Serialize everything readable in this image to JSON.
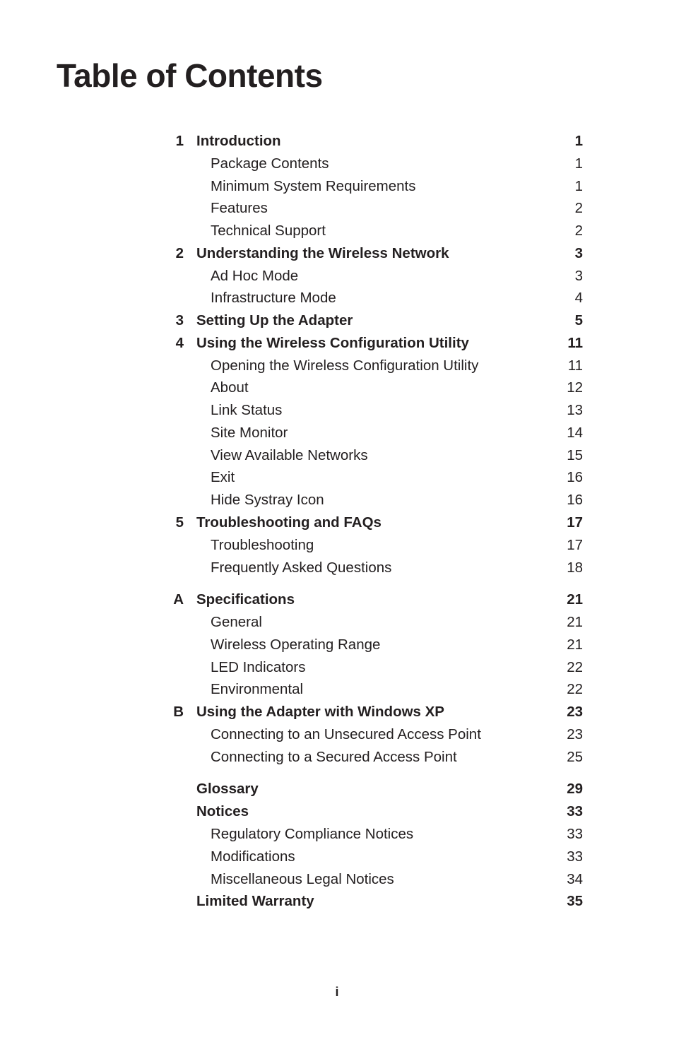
{
  "title": "Table of Contents",
  "pageNumber": "i",
  "entries": [
    {
      "num": "1",
      "label": "Introduction",
      "page": "1",
      "bold": true,
      "sub": false
    },
    {
      "num": "",
      "label": "Package Contents",
      "page": "1",
      "bold": false,
      "sub": true
    },
    {
      "num": "",
      "label": "Minimum System Requirements",
      "page": "1",
      "bold": false,
      "sub": true
    },
    {
      "num": "",
      "label": "Features",
      "page": "2",
      "bold": false,
      "sub": true
    },
    {
      "num": "",
      "label": "Technical Support",
      "page": "2",
      "bold": false,
      "sub": true
    },
    {
      "num": "2",
      "label": "Understanding the Wireless Network",
      "page": "3",
      "bold": true,
      "sub": false
    },
    {
      "num": "",
      "label": "Ad Hoc Mode",
      "page": "3",
      "bold": false,
      "sub": true
    },
    {
      "num": "",
      "label": "Infrastructure Mode",
      "page": "4",
      "bold": false,
      "sub": true
    },
    {
      "num": "3",
      "label": "Setting Up the Adapter",
      "page": "5",
      "bold": true,
      "sub": false
    },
    {
      "num": "4",
      "label": "Using the Wireless Configuration Utility",
      "page": "11",
      "bold": true,
      "sub": false
    },
    {
      "num": "",
      "label": "Opening the Wireless Configuration Utility",
      "page": "11",
      "bold": false,
      "sub": true
    },
    {
      "num": "",
      "label": "About",
      "page": "12",
      "bold": false,
      "sub": true
    },
    {
      "num": "",
      "label": "Link Status",
      "page": "13",
      "bold": false,
      "sub": true
    },
    {
      "num": "",
      "label": "Site Monitor",
      "page": "14",
      "bold": false,
      "sub": true
    },
    {
      "num": "",
      "label": "View Available Networks",
      "page": "15",
      "bold": false,
      "sub": true
    },
    {
      "num": "",
      "label": "Exit",
      "page": "16",
      "bold": false,
      "sub": true
    },
    {
      "num": "",
      "label": "Hide Systray Icon",
      "page": "16",
      "bold": false,
      "sub": true
    },
    {
      "num": "5",
      "label": "Troubleshooting and FAQs",
      "page": "17",
      "bold": true,
      "sub": false
    },
    {
      "num": "",
      "label": "Troubleshooting",
      "page": "17",
      "bold": false,
      "sub": true
    },
    {
      "num": "",
      "label": "Frequently Asked Questions",
      "page": "18",
      "bold": false,
      "sub": true
    },
    {
      "gap": true
    },
    {
      "num": "A",
      "label": "Specifications",
      "page": "21",
      "bold": true,
      "sub": false
    },
    {
      "num": "",
      "label": "General",
      "page": "21",
      "bold": false,
      "sub": true
    },
    {
      "num": "",
      "label": "Wireless Operating Range",
      "page": "21",
      "bold": false,
      "sub": true
    },
    {
      "num": "",
      "label": "LED Indicators",
      "page": "22",
      "bold": false,
      "sub": true
    },
    {
      "num": "",
      "label": "Environmental",
      "page": "22",
      "bold": false,
      "sub": true
    },
    {
      "num": "B",
      "label": "Using the Adapter with Windows XP",
      "page": "23",
      "bold": true,
      "sub": false
    },
    {
      "num": "",
      "label": "Connecting to an Unsecured Access Point",
      "page": "23",
      "bold": false,
      "sub": true
    },
    {
      "num": "",
      "label": "Connecting to a Secured Access Point",
      "page": "25",
      "bold": false,
      "sub": true
    },
    {
      "gap": true
    },
    {
      "num": "",
      "label": "Glossary",
      "page": "29",
      "bold": true,
      "sub": false
    },
    {
      "num": "",
      "label": "Notices",
      "page": "33",
      "bold": true,
      "sub": false
    },
    {
      "num": "",
      "label": "Regulatory Compliance Notices",
      "page": "33",
      "bold": false,
      "sub": true
    },
    {
      "num": "",
      "label": "Modifications",
      "page": "33",
      "bold": false,
      "sub": true
    },
    {
      "num": "",
      "label": "Miscellaneous Legal Notices",
      "page": "34",
      "bold": false,
      "sub": true
    },
    {
      "num": "",
      "label": "Limited Warranty",
      "page": "35",
      "bold": true,
      "sub": false
    }
  ]
}
